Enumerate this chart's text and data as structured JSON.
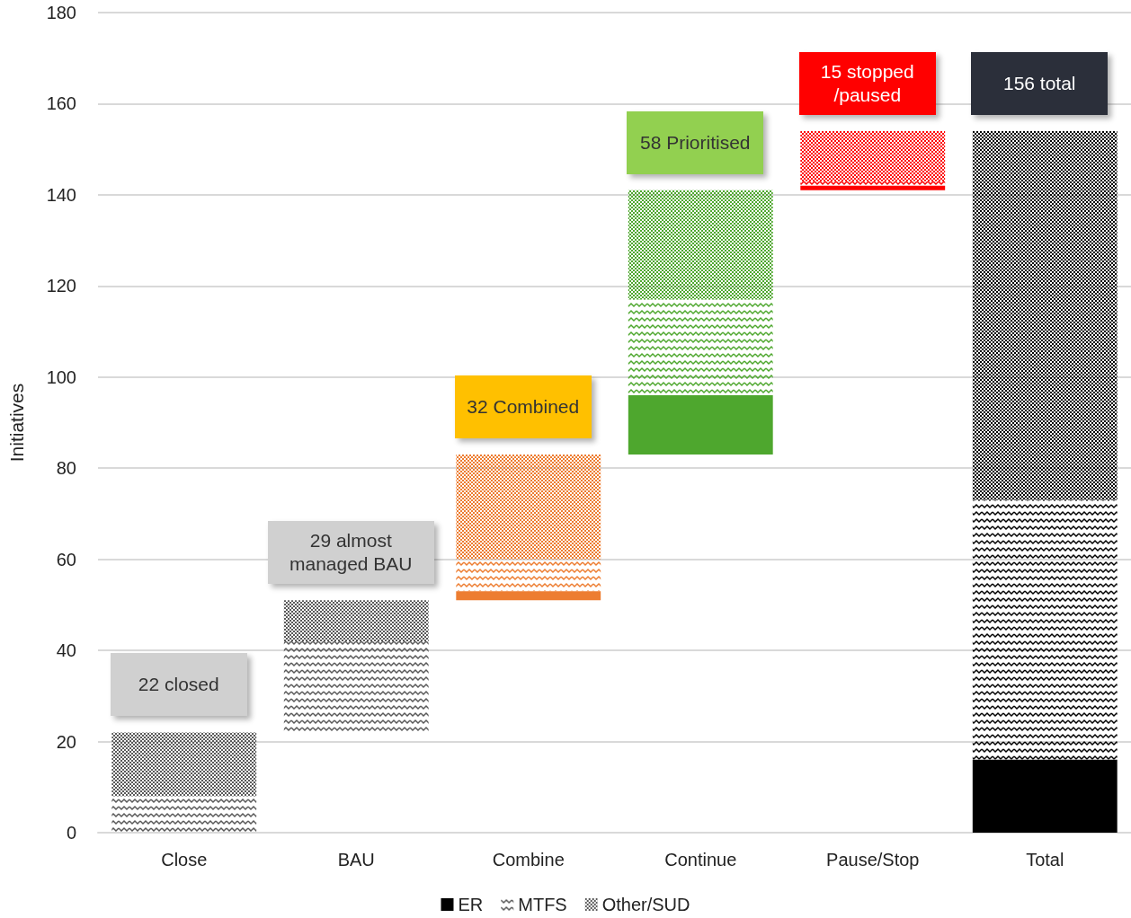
{
  "chart_data": {
    "type": "bar",
    "ylabel": "Initiatives",
    "categories": [
      "Close",
      "BAU",
      "Combine",
      "Continue",
      "Pause/Stop",
      "Total"
    ],
    "series": [
      {
        "name": "ER",
        "color": "#000000",
        "base": [
          null,
          null,
          51,
          83,
          141,
          0
        ],
        "colors": [
          "#595959",
          "#595959",
          "#ed7d31",
          "#4ea72e",
          "#ff0000",
          "#000000"
        ],
        "values": [
          null,
          null,
          2,
          13,
          1,
          16
        ]
      },
      {
        "name": "MTFS",
        "color": "#595959",
        "base": [
          0,
          22,
          53,
          96,
          142,
          16
        ],
        "colors": [
          "#595959",
          "#595959",
          "#ed7d31",
          "#4ea72e",
          "#ff0000",
          "#000000"
        ],
        "values": [
          8,
          20,
          7,
          21,
          1,
          57
        ]
      },
      {
        "name": "Other/SUD",
        "color": "#595959",
        "base": [
          8,
          42,
          60,
          117,
          143,
          73
        ],
        "colors": [
          "#595959",
          "#595959",
          "#ed7d31",
          "#4ea72e",
          "#ff0000",
          "#000000"
        ],
        "values": [
          14,
          9,
          23,
          24,
          11,
          81
        ]
      }
    ],
    "annotations": [
      "22 closed",
      "29 almost managed BAU",
      "32 Combined",
      "58 Prioritised",
      "15 stopped /paused",
      "156 total"
    ],
    "ylim": [
      0,
      180
    ],
    "yticks": [
      0,
      20,
      40,
      60,
      80,
      100,
      120,
      140,
      160,
      180
    ],
    "grid": "y",
    "legend": "bottom"
  }
}
